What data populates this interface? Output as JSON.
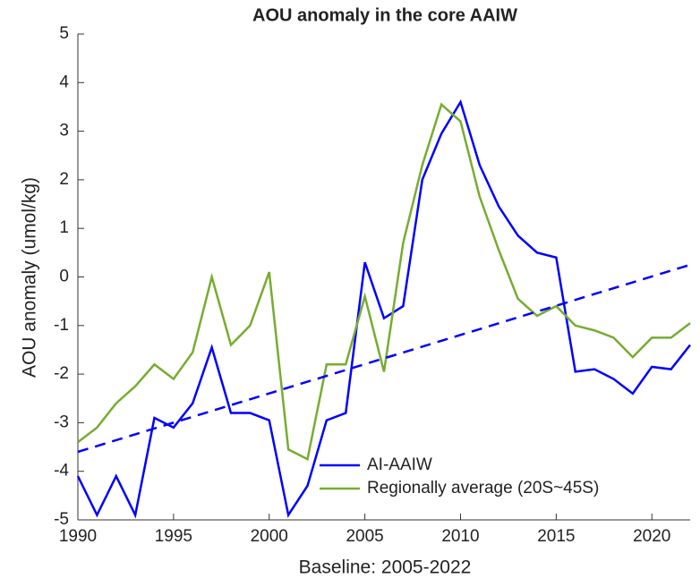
{
  "chart_data": {
    "type": "line",
    "title": "AOU anomaly in the core AAIW",
    "x_label": "Baseline: 2005-2022",
    "y_label": "AOU anomaly (umol/kg)",
    "x": [
      1990,
      1991,
      1992,
      1993,
      1994,
      1995,
      1996,
      1997,
      1998,
      1999,
      2000,
      2001,
      2002,
      2003,
      2004,
      2005,
      2006,
      2007,
      2008,
      2009,
      2010,
      2011,
      2012,
      2013,
      2014,
      2015,
      2016,
      2017,
      2018,
      2019,
      2020,
      2021,
      2022
    ],
    "series": [
      {
        "name": "AI-AAIW",
        "color": "#0000ff",
        "values": [
          -4.1,
          -4.9,
          -4.1,
          -4.9,
          -2.9,
          -3.1,
          -2.6,
          -1.45,
          -2.8,
          -2.8,
          -2.95,
          -4.9,
          -4.3,
          -2.95,
          -2.8,
          0.3,
          -0.85,
          -0.6,
          2.0,
          2.95,
          3.6,
          2.3,
          1.45,
          0.85,
          0.5,
          0.4,
          -1.95,
          -1.9,
          -2.1,
          -2.4,
          -1.85,
          -1.9,
          -1.4
        ]
      },
      {
        "name": "Regionally average (20S~45S)",
        "color": "#77ac30",
        "values": [
          -3.4,
          -3.1,
          -2.6,
          -2.25,
          -1.8,
          -2.1,
          -1.55,
          0.0,
          -1.4,
          -1.0,
          0.1,
          -3.55,
          -3.75,
          -1.8,
          -1.8,
          -0.4,
          -1.95,
          0.7,
          2.3,
          3.55,
          3.2,
          1.65,
          0.55,
          -0.45,
          -0.8,
          -0.6,
          -1.0,
          -1.1,
          -1.25,
          -1.65,
          -1.25,
          -1.25,
          -0.95
        ]
      }
    ],
    "trend": {
      "color": "#0000ff",
      "x": [
        1990,
        2022
      ],
      "values": [
        -3.6,
        0.25
      ]
    },
    "xlim": [
      1990,
      2022
    ],
    "xticks": [
      1990,
      1995,
      2000,
      2005,
      2010,
      2015,
      2020
    ],
    "ylim": [
      -5,
      5
    ],
    "yticks": [
      -5,
      -4,
      -3,
      -2,
      -1,
      0,
      1,
      2,
      3,
      4,
      5
    ],
    "grid": false,
    "legend": "lower-center"
  }
}
